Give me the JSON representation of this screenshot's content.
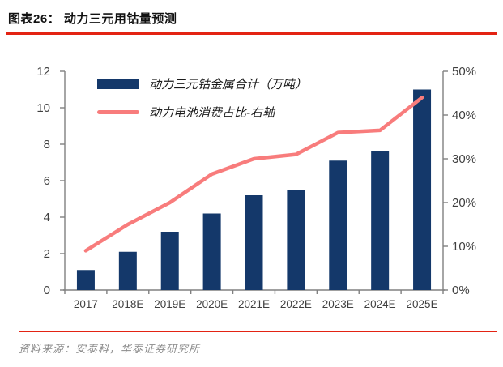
{
  "page": {
    "title": "图表26：  动力三元用钴量预测",
    "source": "资料来源：安泰科，华泰证券研究所"
  },
  "legend": {
    "items": [
      {
        "label": "动力三元钴金属合计（万吨）",
        "swatch": "bar"
      },
      {
        "label": "动力电池消费占比-右轴",
        "swatch": "line"
      }
    ]
  },
  "colors": {
    "bar": "#14386a",
    "line": "#f87c7c",
    "rule_red": "#e32313",
    "axis": "#808080",
    "tick_label": "#3f3f3f"
  },
  "chart_data": {
    "type": "bar",
    "subtype": "bar+line-combo",
    "categories": [
      "2017",
      "2018E",
      "2019E",
      "2020E",
      "2021E",
      "2022E",
      "2023E",
      "2024E",
      "2025E"
    ],
    "series": [
      {
        "name": "动力三元钴金属合计（万吨）",
        "type": "bar",
        "axis": "left",
        "values": [
          1.1,
          2.1,
          3.2,
          4.2,
          5.2,
          5.5,
          7.1,
          7.6,
          11.0
        ]
      },
      {
        "name": "动力电池消费占比-右轴",
        "type": "line",
        "axis": "right",
        "unit": "%",
        "values": [
          9,
          15,
          20,
          26.5,
          30,
          31,
          36,
          36.5,
          44
        ]
      }
    ],
    "left_axis": {
      "min": 0,
      "max": 12,
      "tick_labels": [
        "0",
        "2",
        "4",
        "6",
        "8",
        "10",
        "12"
      ]
    },
    "right_axis": {
      "min": 0,
      "max": 50,
      "tick_labels": [
        "0%",
        "10%",
        "20%",
        "30%",
        "40%",
        "50%"
      ]
    },
    "grid": false,
    "legend_position": "inside-top-left"
  }
}
